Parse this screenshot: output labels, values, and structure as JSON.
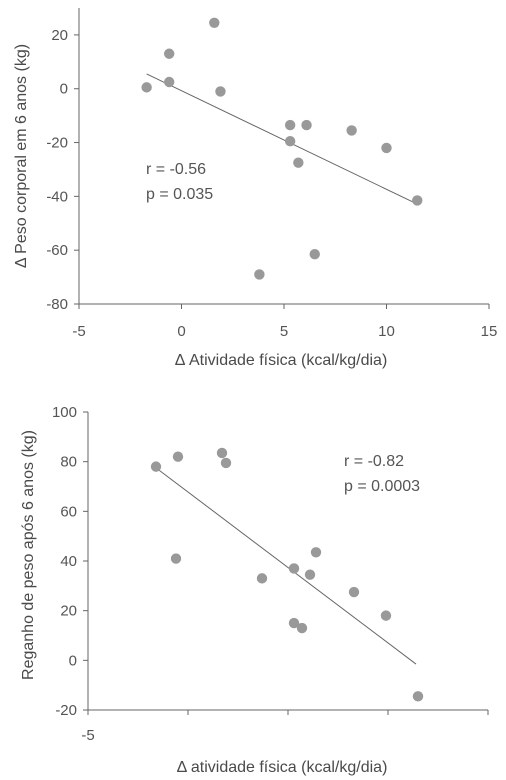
{
  "chart_data": [
    {
      "type": "scatter",
      "xlabel": "Δ Atividade física (kcal/kg/dia)",
      "ylabel": "Δ Peso corporal em 6 anos (kg)",
      "xlim": [
        -5,
        15
      ],
      "ylim": [
        -80,
        30
      ],
      "xticks": [
        "-5",
        "0",
        "5",
        "10",
        "15"
      ],
      "yticks": [
        "20",
        "0",
        "-20",
        "-40",
        "-60",
        "-80"
      ],
      "grid": false,
      "annotations": [
        "r = -0.56",
        "p = 0.035"
      ],
      "point_color": "#999999",
      "line_color": "#666666",
      "points": [
        {
          "x": -1.7,
          "y": 0.5
        },
        {
          "x": -0.6,
          "y": 13
        },
        {
          "x": -0.6,
          "y": 2.5
        },
        {
          "x": 1.6,
          "y": 24.5
        },
        {
          "x": 1.9,
          "y": -1
        },
        {
          "x": 3.8,
          "y": -69
        },
        {
          "x": 5.3,
          "y": -13.5
        },
        {
          "x": 5.3,
          "y": -19.5
        },
        {
          "x": 5.7,
          "y": -27.5
        },
        {
          "x": 6.1,
          "y": -13.5
        },
        {
          "x": 6.5,
          "y": -61.5
        },
        {
          "x": 8.3,
          "y": -15.5
        },
        {
          "x": 10.0,
          "y": -22
        },
        {
          "x": 11.5,
          "y": -41.5
        }
      ],
      "trendline": {
        "x": [
          -1.7,
          11.4
        ],
        "y": [
          5.5,
          -42.5
        ]
      }
    },
    {
      "type": "scatter",
      "xlabel": "Δ atividade física (kcal/kg/dia)",
      "ylabel": "Reganho de peso após 6 anos (kg)",
      "xlim": [
        -5,
        15
      ],
      "ylim": [
        -20,
        100
      ],
      "xticks": [
        "-5"
      ],
      "yticks": [
        "100",
        "80",
        "60",
        "40",
        "20",
        "0",
        "-20"
      ],
      "grid": false,
      "annotations": [
        "r = -0.82",
        "p = 0.0003"
      ],
      "point_color": "#999999",
      "line_color": "#666666",
      "points": [
        {
          "x": -1.6,
          "y": 78
        },
        {
          "x": -0.5,
          "y": 82
        },
        {
          "x": -0.6,
          "y": 41
        },
        {
          "x": 1.7,
          "y": 83.5
        },
        {
          "x": 1.9,
          "y": 79.5
        },
        {
          "x": 3.7,
          "y": 33
        },
        {
          "x": 5.3,
          "y": 37
        },
        {
          "x": 5.3,
          "y": 15
        },
        {
          "x": 5.7,
          "y": 13
        },
        {
          "x": 6.1,
          "y": 34.5
        },
        {
          "x": 6.4,
          "y": 43.5
        },
        {
          "x": 8.3,
          "y": 27.5
        },
        {
          "x": 9.9,
          "y": 18
        },
        {
          "x": 11.5,
          "y": -14.5
        }
      ],
      "trendline": {
        "x": [
          -1.6,
          11.4
        ],
        "y": [
          77.5,
          -1.5
        ]
      }
    }
  ]
}
